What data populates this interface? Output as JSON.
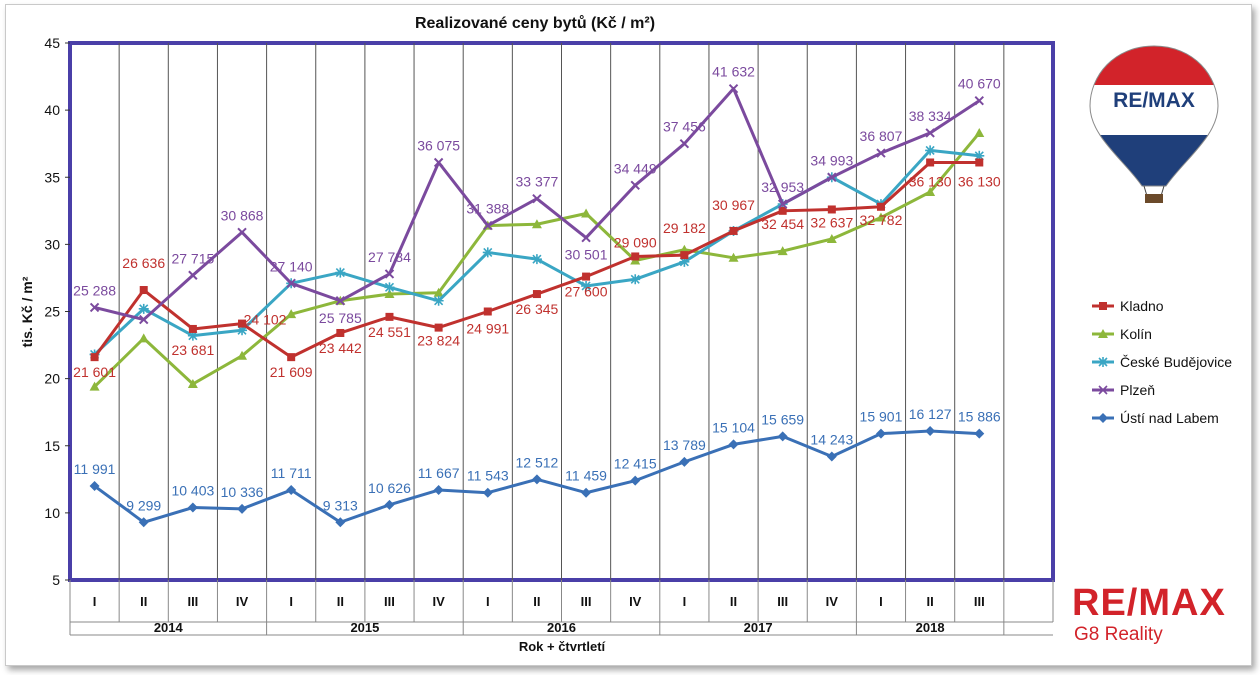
{
  "chart_data": {
    "type": "line",
    "title": "Realizované ceny bytů (Kč / m²)",
    "ylabel": "tis. Kč / m²",
    "xlabel": "Rok + čtvrtletí",
    "ylim": [
      5,
      45
    ],
    "yticks": [
      5,
      10,
      15,
      20,
      25,
      30,
      35,
      40,
      45
    ],
    "grid": "vertical",
    "legend_position": "right",
    "quarters": [
      "I",
      "II",
      "III",
      "IV",
      "I",
      "II",
      "III",
      "IV",
      "I",
      "II",
      "III",
      "IV",
      "I",
      "II",
      "III",
      "IV",
      "I",
      "II",
      "III"
    ],
    "years": [
      {
        "label": "2014",
        "span": 4
      },
      {
        "label": "2015",
        "span": 4
      },
      {
        "label": "2016",
        "span": 4
      },
      {
        "label": "2017",
        "span": 4
      },
      {
        "label": "2018",
        "span": 3
      }
    ],
    "series": [
      {
        "name": "Kladno",
        "color": "#c0312e",
        "marker": "square",
        "values": [
          21.6,
          26.6,
          23.7,
          24.1,
          21.6,
          23.4,
          24.6,
          23.8,
          25.0,
          26.3,
          27.6,
          29.1,
          29.2,
          31.0,
          32.5,
          32.6,
          32.8,
          36.1,
          36.1
        ],
        "labels": [
          "21 601",
          "26 636",
          "23 681",
          "24 102",
          "21 609",
          "23 442",
          "24 551",
          "23 824",
          "24 991",
          "26 345",
          "27 600",
          "29 090",
          "29 182",
          "30 967",
          "32 454",
          "32 637",
          "32 782",
          "36 130",
          "36 130"
        ]
      },
      {
        "name": "Kolín",
        "color": "#8db73b",
        "marker": "triangle",
        "values": [
          19.4,
          23.0,
          19.6,
          21.7,
          24.8,
          25.8,
          26.3,
          26.4,
          31.4,
          31.5,
          32.3,
          28.8,
          29.6,
          29.0,
          29.5,
          30.4,
          32.0,
          33.9,
          38.3
        ],
        "labels": []
      },
      {
        "name": "České Budějovice",
        "color": "#3aa6c4",
        "marker": "star",
        "values": [
          21.8,
          25.2,
          23.2,
          23.6,
          27.1,
          27.9,
          26.8,
          25.8,
          29.4,
          28.9,
          26.9,
          27.4,
          28.7,
          31.0,
          33.0,
          35.0,
          33.0,
          37.0,
          36.6
        ],
        "labels": []
      },
      {
        "name": "Plzeň",
        "color": "#7b4a9e",
        "marker": "x",
        "values": [
          25.3,
          24.4,
          27.7,
          30.9,
          27.1,
          25.8,
          27.8,
          36.1,
          31.4,
          33.4,
          30.5,
          34.4,
          37.5,
          41.6,
          33.0,
          35.0,
          36.8,
          38.3,
          40.7
        ],
        "labels": [
          "25 288",
          "",
          "27 715",
          "30 868",
          "27 140",
          "25 785",
          "27 784",
          "36 075",
          "31 388",
          "33 377",
          "30 501",
          "34 449",
          "37 456",
          "41 632",
          "32 953",
          "34 993",
          "36 807",
          "38 334",
          "40 670"
        ]
      },
      {
        "name": "Ústí nad Labem",
        "color": "#3a70b6",
        "marker": "diamond",
        "values": [
          12.0,
          9.3,
          10.4,
          10.3,
          11.7,
          9.3,
          10.6,
          11.7,
          11.5,
          12.5,
          11.5,
          12.4,
          13.8,
          15.1,
          15.7,
          14.2,
          15.9,
          16.1,
          15.9
        ],
        "labels": [
          "11 991",
          "9 299",
          "10 403",
          "10 336",
          "11 711",
          "9 313",
          "10 626",
          "11 667",
          "11 543",
          "12 512",
          "11 459",
          "12 415",
          "13 789",
          "15 104",
          "15 659",
          "14 243",
          "15 901",
          "16 127",
          "15 886"
        ]
      }
    ]
  },
  "logo": {
    "balloon_text": "RE/MAX",
    "brand_text": "RE/MAX",
    "brand_subtext": "G8 Reality",
    "brand_color": "#d2232a",
    "balloon_blue": "#1f3f7a"
  }
}
